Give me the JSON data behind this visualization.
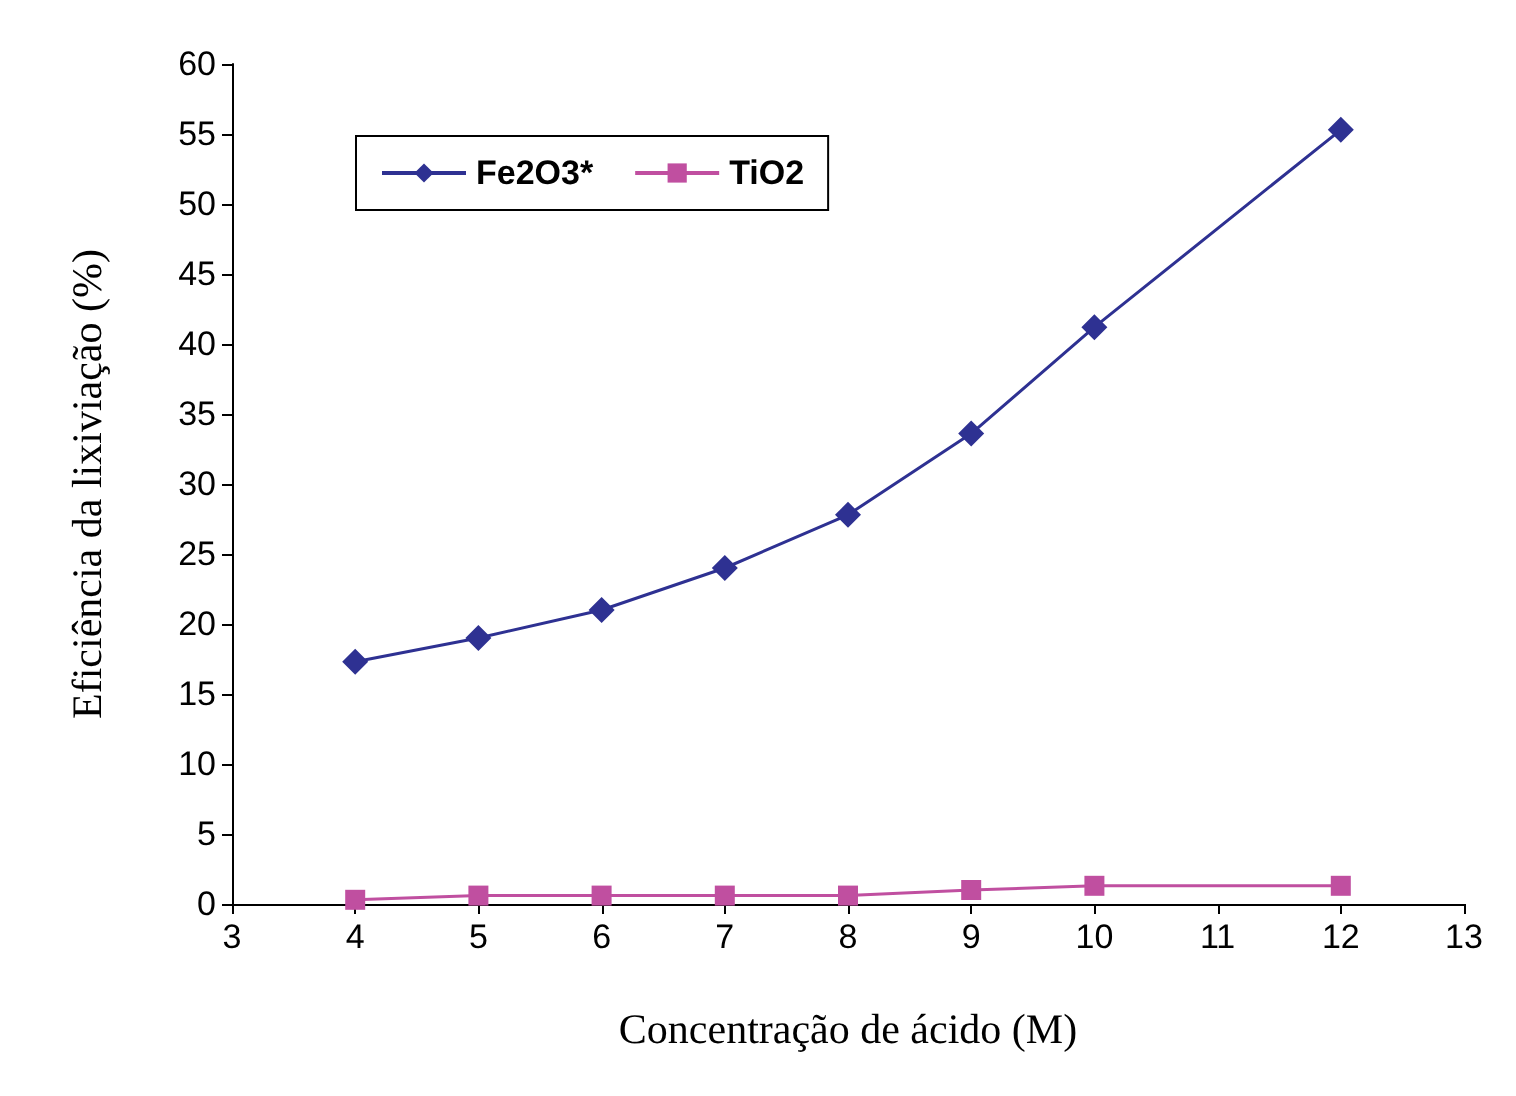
{
  "chart_data": {
    "type": "line",
    "xlabel": "Concentração de ácido (M)",
    "ylabel": "Eficiência da lixiviação (%)",
    "xlim": [
      3,
      13
    ],
    "xticks": [
      3,
      4,
      5,
      6,
      7,
      8,
      9,
      10,
      11,
      12,
      13
    ],
    "ylim": [
      0,
      60
    ],
    "yticks": [
      0,
      5,
      10,
      15,
      20,
      25,
      30,
      35,
      40,
      45,
      50,
      55,
      60
    ],
    "grid": false,
    "legend": "top left",
    "series": [
      {
        "name": "Fe2O3*",
        "color": "#2e3192",
        "marker": "diamond",
        "x": [
          4,
          5,
          6,
          7,
          8,
          9,
          10,
          12
        ],
        "values": [
          17.3,
          19,
          21,
          24,
          27.8,
          33.6,
          41.2,
          55.3
        ]
      },
      {
        "name": "TiO2",
        "color": "#c04fa0",
        "marker": "square",
        "x": [
          4,
          5,
          6,
          7,
          8,
          9,
          10,
          12
        ],
        "values": [
          0.3,
          0.6,
          0.6,
          0.6,
          0.6,
          1.0,
          1.3,
          1.3
        ]
      }
    ]
  }
}
